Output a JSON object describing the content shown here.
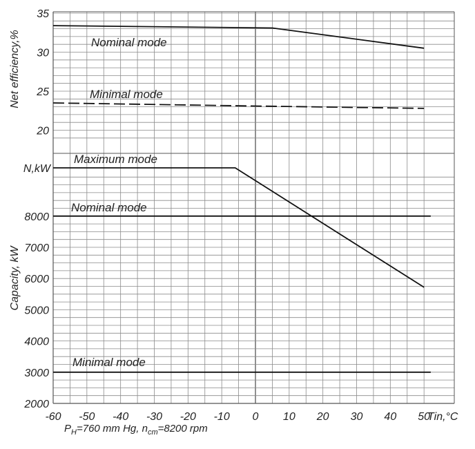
{
  "chart_data": [
    {
      "type": "line",
      "panel": "efficiency",
      "ylabel": "Net efficiency,%",
      "ylim": [
        19,
        35
      ],
      "yticks": [
        "35",
        "30",
        "25",
        "20"
      ],
      "xlim": [
        -60,
        52
      ],
      "series": [
        {
          "name": "Nominal mode",
          "style": "solid",
          "x": [
            -60,
            5,
            50
          ],
          "y": [
            33.4,
            33.1,
            30.5
          ]
        },
        {
          "name": "Minimal mode",
          "style": "dashed",
          "x": [
            -60,
            0,
            50
          ],
          "y": [
            23.5,
            23.1,
            22.8
          ]
        }
      ]
    },
    {
      "type": "line",
      "panel": "capacity",
      "ylabel": "Capacity, kW",
      "ylim": [
        2000,
        9400
      ],
      "yticks": [
        "8000",
        "7000",
        "6000",
        "5000",
        "4000",
        "3000",
        "2000"
      ],
      "top_tick_label": "N,kW",
      "xlabel": "Tin,°C",
      "xlim": [
        -60,
        52
      ],
      "xticks": [
        "-60",
        "-50",
        "-40",
        "-30",
        "-20",
        "-10",
        "0",
        "10",
        "20",
        "30",
        "40",
        "50"
      ],
      "series": [
        {
          "name": "Maximum mode",
          "style": "solid",
          "x": [
            -60,
            -6,
            50
          ],
          "y": [
            9550,
            9550,
            5720
          ]
        },
        {
          "name": "Nominal mode",
          "style": "solid",
          "x": [
            -60,
            52
          ],
          "y": [
            8000,
            8000
          ]
        },
        {
          "name": "Minimal mode",
          "style": "solid",
          "x": [
            -60,
            52
          ],
          "y": [
            3000,
            3000
          ]
        }
      ]
    }
  ],
  "footnote": {
    "p_symbol": "P",
    "p_sub": "H",
    "p_rest": "=760 mm Hg, ",
    "n_symbol": "n",
    "n_sub": "cm",
    "n_rest": "=8200 rpm"
  },
  "colors": {
    "grid": "#8a8a8a",
    "line": "#111111",
    "axis": "#555555"
  }
}
